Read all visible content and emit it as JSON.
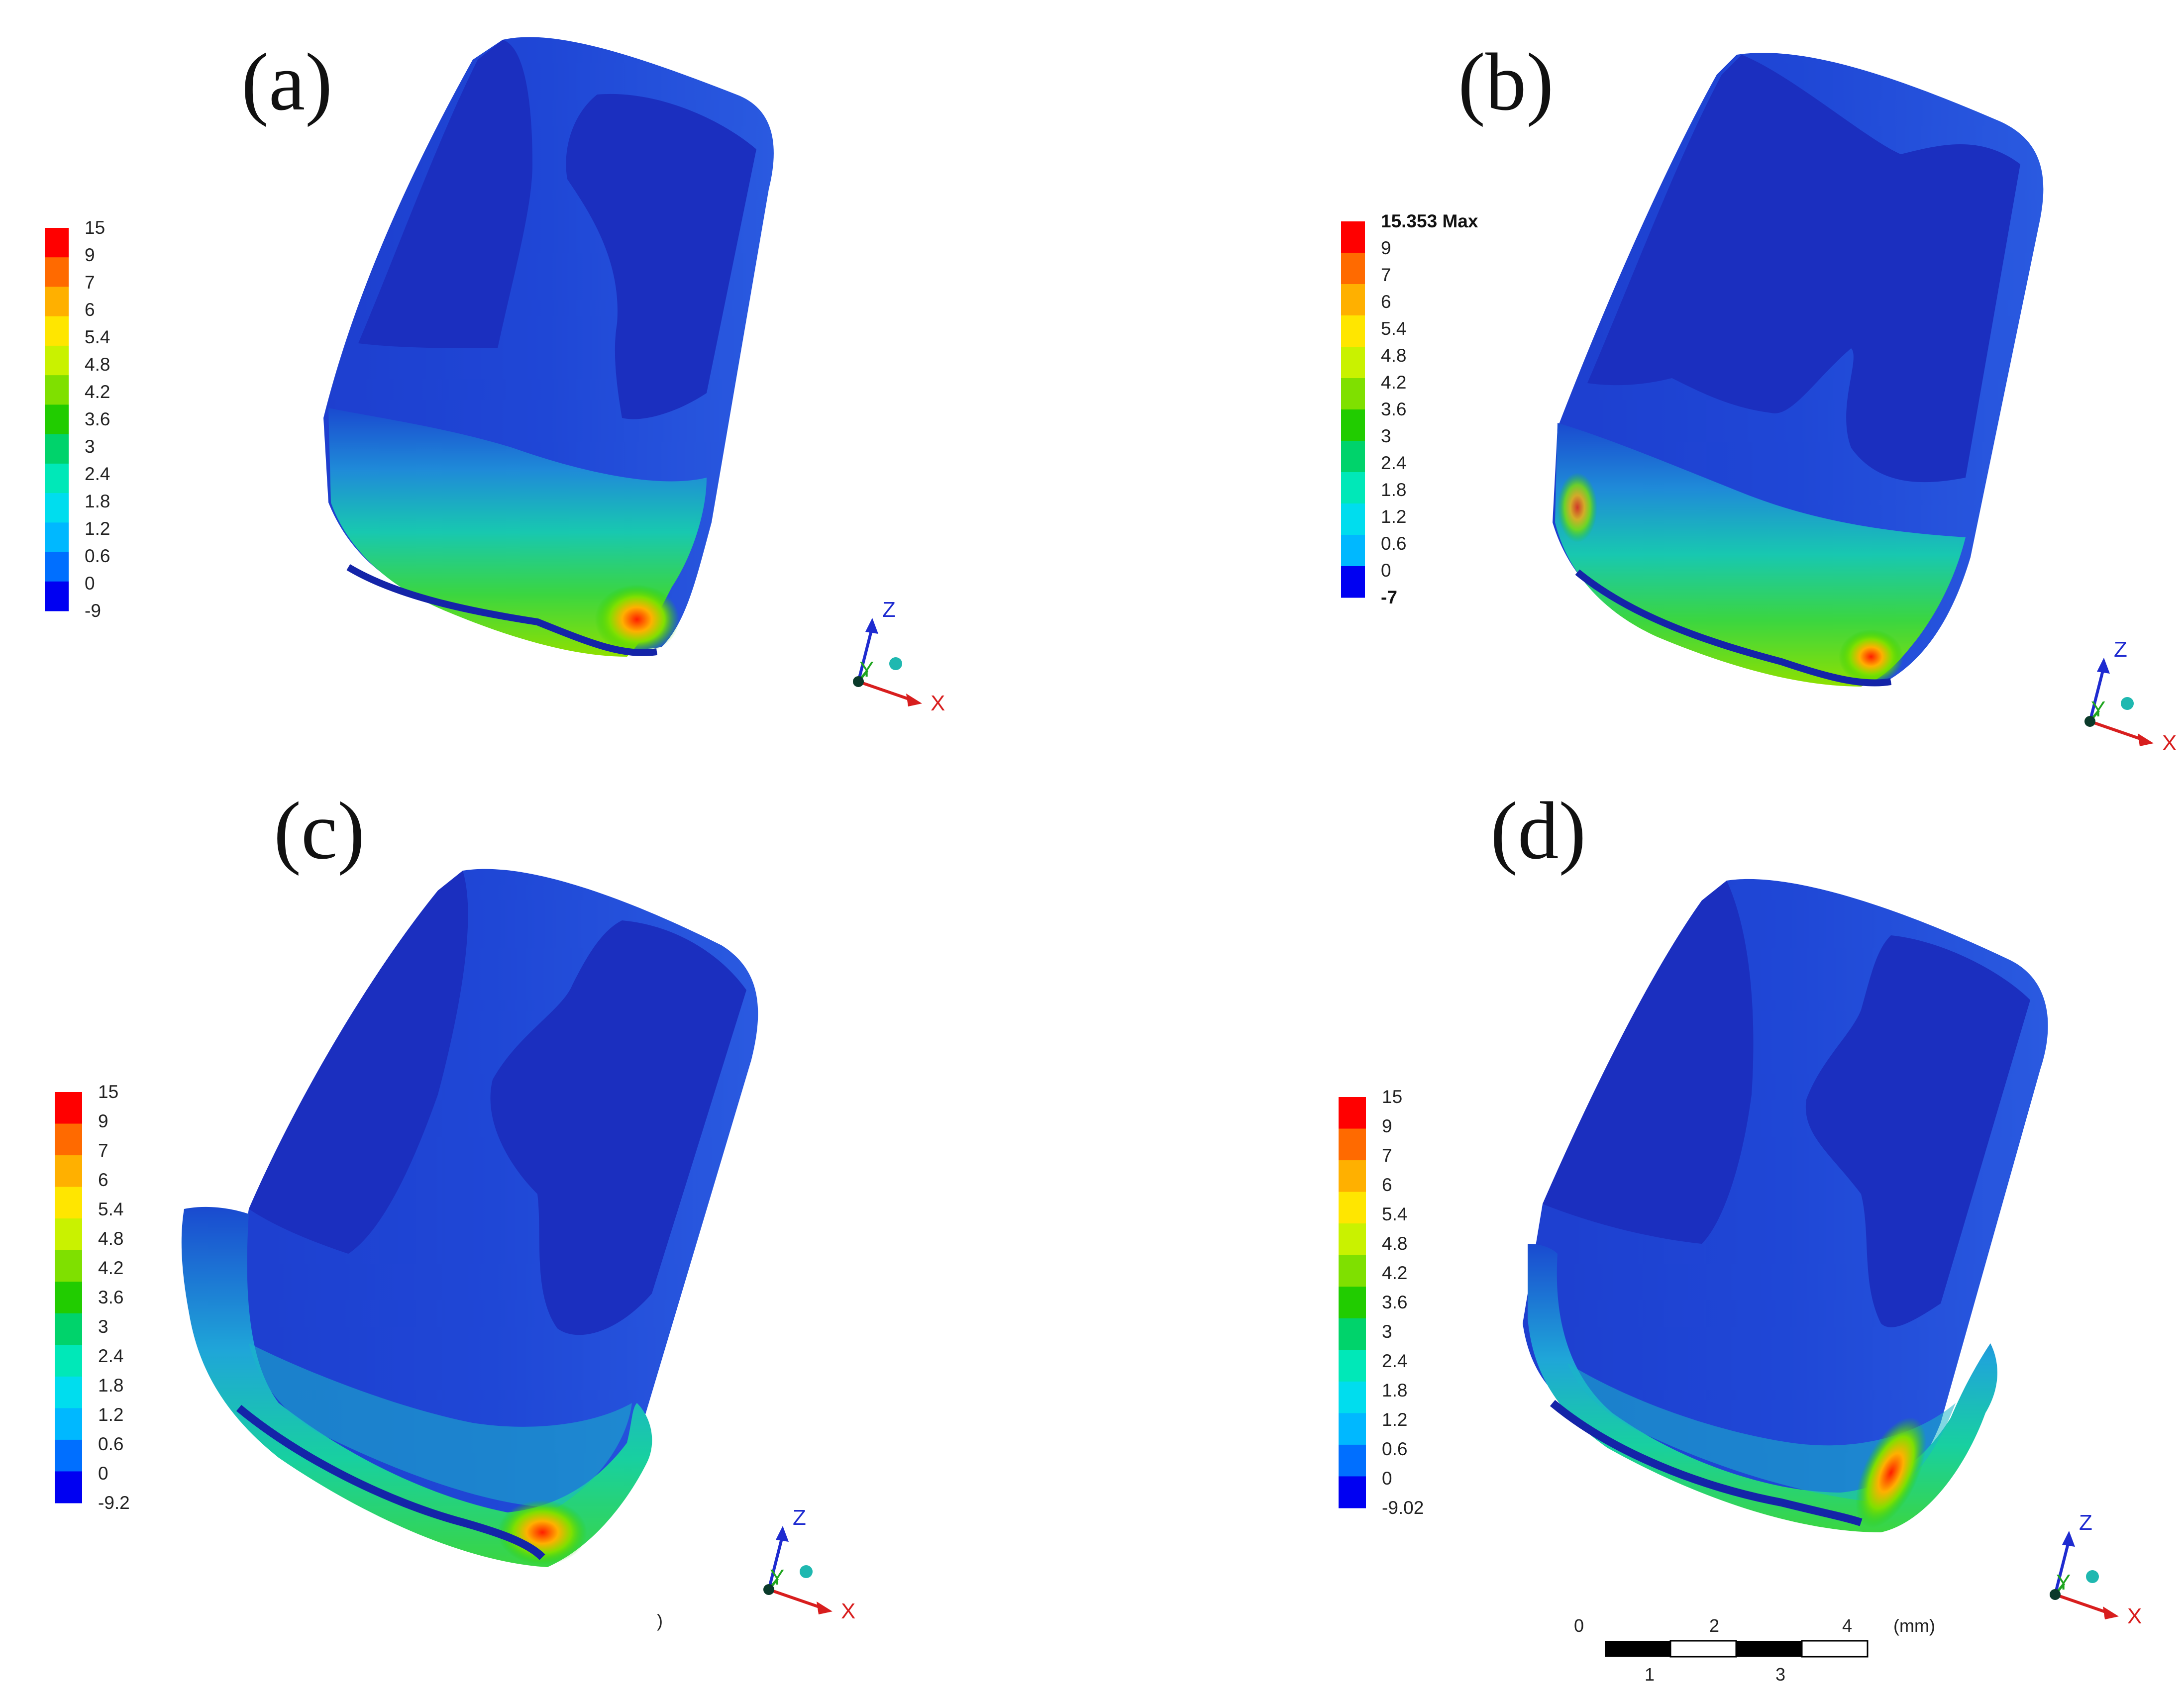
{
  "colors": [
    "#ff0000",
    "#ff6a00",
    "#ffb000",
    "#ffe600",
    "#c9f200",
    "#7fe000",
    "#21cc00",
    "#00d36b",
    "#00e8b8",
    "#00ddee",
    "#00b8ff",
    "#006fff",
    "#0000f2"
  ],
  "colors_b": [
    "#ff0000",
    "#ff6a00",
    "#ffb000",
    "#ffe600",
    "#c9f200",
    "#7fe000",
    "#21cc00",
    "#00d36b",
    "#00e8b8",
    "#00ddee",
    "#00b8ff",
    "#0000f2"
  ],
  "axes": {
    "x": "X",
    "y": "Y",
    "z": "Z"
  },
  "panels": [
    {
      "label": "(a)",
      "legend": [
        "15",
        "9",
        "7",
        "6",
        "5.4",
        "4.8",
        "4.2",
        "3.6",
        "3",
        "2.4",
        "1.8",
        "1.2",
        "0.6",
        "0",
        "-9"
      ]
    },
    {
      "label": "(b)",
      "legend": [
        "15.353 Max",
        "9",
        "7",
        "6",
        "5.4",
        "4.8",
        "4.2",
        "3.6",
        "3",
        "2.4",
        "1.8",
        "1.2",
        "0.6",
        "0",
        "-7"
      ]
    },
    {
      "label": "(c)",
      "legend": [
        "15",
        "9",
        "7",
        "6",
        "5.4",
        "4.8",
        "4.2",
        "3.6",
        "3",
        "2.4",
        "1.8",
        "1.2",
        "0.6",
        "0",
        "-9.2"
      ]
    },
    {
      "label": "(d)",
      "legend": [
        "15",
        "9",
        "7",
        "6",
        "5.4",
        "4.8",
        "4.2",
        "3.6",
        "3",
        "2.4",
        "1.8",
        "1.2",
        "0.6",
        "0",
        "-9.02"
      ]
    }
  ],
  "stray_mark": ")",
  "scale_bar": {
    "top": [
      "0",
      "2",
      "4"
    ],
    "bottom": [
      "1",
      "3"
    ],
    "unit": "(mm)"
  }
}
